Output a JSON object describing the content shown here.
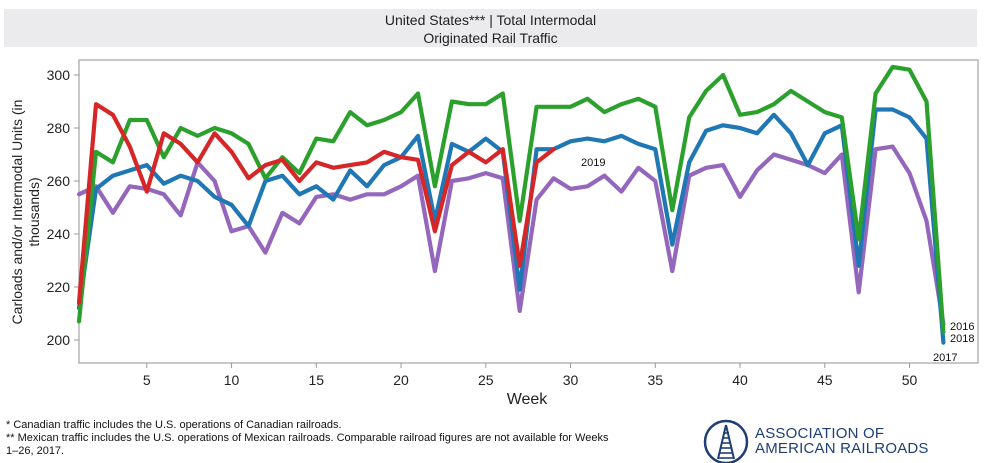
{
  "header": {
    "title_line1": "United States*** | Total Intermodal",
    "title_line2": "Originated Rail Traffic"
  },
  "chart_data": {
    "type": "line",
    "title": "United States*** | Total Intermodal — Originated Rail Traffic",
    "xlabel": "Week",
    "ylabel": "Carloads and/or Intermodal Units (in thousands)",
    "ylabel_line1": "Carloads and/or Intermodal Units (in",
    "ylabel_line2": "thousands)",
    "xlim": [
      1,
      53
    ],
    "ylim": [
      190,
      305
    ],
    "x_ticks": [
      5,
      10,
      15,
      20,
      25,
      30,
      35,
      40,
      45,
      50
    ],
    "y_ticks": [
      200,
      220,
      240,
      260,
      280,
      300
    ],
    "grid": false,
    "series": [
      {
        "name": "2016",
        "color": "#9467bd",
        "values": [
          255,
          258,
          248,
          258,
          257,
          255,
          247,
          267,
          260,
          241,
          243,
          233,
          248,
          244,
          254,
          255,
          253,
          255,
          255,
          258,
          262,
          226,
          260,
          261,
          263,
          261,
          211,
          253,
          261,
          257,
          258,
          262,
          256,
          265,
          260,
          226,
          262,
          265,
          266,
          254,
          264,
          270,
          268,
          266,
          263,
          270,
          218,
          272,
          273,
          263,
          245,
          206
        ]
      },
      {
        "name": "2017",
        "color": "#1f77b4",
        "values": [
          212,
          257,
          262,
          264,
          266,
          259,
          262,
          260,
          254,
          251,
          243,
          260,
          262,
          255,
          258,
          253,
          264,
          258,
          266,
          269,
          277,
          245,
          274,
          271,
          276,
          271,
          219,
          272,
          272,
          275,
          276,
          275,
          277,
          274,
          272,
          236,
          267,
          279,
          281,
          280,
          278,
          285,
          278,
          266,
          278,
          281,
          228,
          287,
          287,
          284,
          276,
          199
        ]
      },
      {
        "name": "2018",
        "color": "#2ca02c",
        "values": [
          207,
          271,
          267,
          283,
          283,
          269,
          280,
          277,
          280,
          278,
          274,
          261,
          269,
          263,
          276,
          275,
          286,
          281,
          283,
          286,
          293,
          258,
          290,
          289,
          289,
          293,
          245,
          288,
          288,
          288,
          291,
          286,
          289,
          291,
          288,
          249,
          284,
          294,
          300,
          285,
          286,
          289,
          294,
          290,
          286,
          284,
          238,
          293,
          303,
          302,
          290,
          203
        ]
      },
      {
        "name": "2019",
        "color": "#d62728",
        "values": [
          214,
          289,
          285,
          273,
          256,
          278,
          274,
          267,
          278,
          271,
          261,
          266,
          268,
          260,
          267,
          265,
          266,
          267,
          271,
          269,
          268,
          241,
          266,
          271,
          267,
          272,
          228,
          267,
          272
        ]
      }
    ],
    "end_labels": [
      "2016",
      "2018",
      "2017"
    ],
    "annotation_2019": "2019"
  },
  "footnotes": {
    "line1": "* Canadian traffic includes the U.S. operations of Canadian railroads.",
    "line2": "** Mexican traffic includes the U.S. operations of Mexican railroads. Comparable railroad figures are not available for Weeks",
    "line3": "1–26, 2017."
  },
  "logo": {
    "line1": "ASSOCIATION OF",
    "line2": "AMERICAN RAILROADS",
    "color": "#1f3f74"
  }
}
